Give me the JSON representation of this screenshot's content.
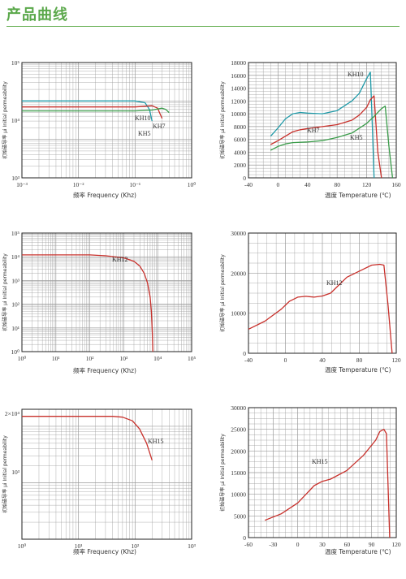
{
  "page": {
    "title": "产品曲线",
    "accent": "#5aa84a"
  },
  "colors": {
    "red": "#c8302b",
    "teal": "#1f9aa8",
    "green": "#3a9c4a",
    "grid": "#9a9a9a",
    "frame": "#222222"
  },
  "chart_data": [
    {
      "type": "line",
      "ylabel": "初始磁导率 μi  Initial permeability",
      "xlabel": "频率 Frequency (Khz)",
      "xscale": "log",
      "yscale": "log",
      "xlim": [
        0.001,
        1
      ],
      "ylim": [
        100,
        100000
      ],
      "xticks": [
        "10⁻³",
        "10⁻²",
        "10⁻¹",
        "10⁰"
      ],
      "yticks": [
        "10³",
        "10⁴",
        "10⁵"
      ],
      "series": [
        {
          "name": "KH10",
          "color": "#1f9aa8",
          "x": [
            0.001,
            0.01,
            0.05,
            0.1,
            0.15,
            0.18,
            0.2
          ],
          "y": [
            10000,
            10000,
            10000,
            10000,
            9000,
            6000,
            3000
          ]
        },
        {
          "name": "KH7",
          "color": "#c8302b",
          "x": [
            0.001,
            0.01,
            0.1,
            0.15,
            0.2,
            0.25,
            0.3
          ],
          "y": [
            7000,
            7000,
            7000,
            7300,
            7500,
            6500,
            3500
          ]
        },
        {
          "name": "KH5",
          "color": "#3a9c4a",
          "x": [
            0.001,
            0.01,
            0.1,
            0.2,
            0.3,
            0.35,
            0.4
          ],
          "y": [
            5500,
            5500,
            5500,
            5800,
            6500,
            6000,
            5000
          ]
        }
      ]
    },
    {
      "type": "line",
      "ylabel": "初始磁导率 μi  Initial permeability",
      "xlabel": "温度 Temperature (℃)",
      "xlim": [
        -40,
        160
      ],
      "ylim": [
        0,
        18000
      ],
      "xticks": [
        "-40",
        "0",
        "40",
        "80",
        "120",
        "160"
      ],
      "yticks": [
        "0",
        "2000",
        "4000",
        "6000",
        "8000",
        "10000",
        "12000",
        "14000",
        "16000",
        "18000"
      ],
      "series": [
        {
          "name": "KH10",
          "color": "#1f9aa8",
          "x": [
            -10,
            0,
            10,
            20,
            30,
            40,
            60,
            80,
            100,
            110,
            120,
            125,
            127,
            130
          ],
          "y": [
            6500,
            7800,
            9200,
            10000,
            10200,
            10100,
            10000,
            10500,
            12000,
            13200,
            15500,
            16500,
            10000,
            0
          ]
        },
        {
          "name": "KH7",
          "color": "#c8302b",
          "x": [
            -10,
            0,
            10,
            20,
            30,
            40,
            60,
            80,
            100,
            110,
            120,
            125,
            130,
            135,
            140
          ],
          "y": [
            5200,
            5800,
            6500,
            7200,
            7500,
            7700,
            8000,
            8300,
            9000,
            9800,
            11000,
            12200,
            12800,
            4000,
            0
          ]
        },
        {
          "name": "KH5",
          "color": "#3a9c4a",
          "x": [
            -10,
            0,
            10,
            20,
            40,
            60,
            80,
            100,
            120,
            130,
            140,
            145,
            150,
            155
          ],
          "y": [
            4300,
            4900,
            5300,
            5500,
            5600,
            5800,
            6300,
            7000,
            8500,
            9600,
            10800,
            11200,
            5000,
            0
          ]
        }
      ]
    },
    {
      "type": "line",
      "ylabel": "初始磁导率 μi  Initial permeability",
      "xlabel": "频率 Frequency (Khz)",
      "xscale": "log",
      "yscale": "log",
      "xlim": [
        1,
        100000
      ],
      "ylim": [
        1,
        100000
      ],
      "xticks": [
        "10⁰",
        "10¹",
        "10²",
        "10³",
        "10⁴",
        "10⁵"
      ],
      "yticks": [
        "10⁰",
        "10¹",
        "10²",
        "10³",
        "10⁴",
        "10⁵"
      ],
      "series": [
        {
          "name": "KH12",
          "color": "#c8302b",
          "x": [
            1,
            10,
            100,
            300,
            1000,
            2000,
            3000,
            4000,
            5000,
            6000,
            6500,
            7000,
            7200
          ],
          "y": [
            12000,
            12000,
            12000,
            11000,
            9000,
            6500,
            4000,
            2000,
            800,
            200,
            50,
            5,
            1
          ]
        }
      ]
    },
    {
      "type": "line",
      "ylabel": "初始磁导率 μi  Initial permeability",
      "xlabel": "温度 Temperature (℃)",
      "xlim": [
        -40,
        140
      ],
      "ylim": [
        0,
        30000
      ],
      "xticks": [
        "-40",
        "0",
        "40",
        "80",
        "120"
      ],
      "yticks": [
        "0",
        "10000",
        "20000",
        "30000"
      ],
      "series": [
        {
          "name": "KH12",
          "color": "#c8302b",
          "x": [
            -40,
            -20,
            0,
            10,
            20,
            30,
            40,
            50,
            60,
            70,
            80,
            100,
            110,
            120,
            125,
            130,
            135
          ],
          "y": [
            6000,
            8000,
            11000,
            13000,
            14000,
            14200,
            14000,
            14300,
            15000,
            17000,
            19000,
            21000,
            22000,
            22200,
            22000,
            12000,
            0
          ]
        }
      ]
    },
    {
      "type": "line",
      "ylabel": "初始磁导率 μi  Initial permeability",
      "xlabel": "频率 Frequency (Khz)",
      "xscale": "log",
      "yscale": "log",
      "xlim": [
        1,
        1000
      ],
      "ylim": [
        100,
        20000
      ],
      "xticks": [
        "10⁰",
        "10¹",
        "10²",
        "10³"
      ],
      "yticks": [
        "2×10⁴",
        "10³"
      ],
      "series": [
        {
          "name": "KH15",
          "color": "#c8302b",
          "x": [
            1,
            10,
            40,
            60,
            90,
            120,
            160,
            200
          ],
          "y": [
            15000,
            15000,
            15000,
            14500,
            12500,
            9000,
            5000,
            2500
          ]
        }
      ]
    },
    {
      "type": "line",
      "ylabel": "初始磁导率 μi  Initial permeability",
      "xlabel": "温度 Temperature (℃)",
      "xlim": [
        -60,
        120
      ],
      "ylim": [
        0,
        30000
      ],
      "xticks": [
        "-60",
        "-30",
        "0",
        "30",
        "60",
        "90",
        "120"
      ],
      "yticks": [
        "0",
        "5000",
        "10000",
        "15000",
        "20000",
        "25000",
        "30000"
      ],
      "series": [
        {
          "name": "KH15",
          "color": "#c8302b",
          "x": [
            -40,
            -20,
            0,
            10,
            20,
            30,
            40,
            60,
            80,
            95,
            100,
            105,
            108,
            110,
            112
          ],
          "y": [
            4000,
            5500,
            8000,
            10000,
            12000,
            13000,
            13500,
            15500,
            19000,
            22500,
            24500,
            25000,
            24000,
            12000,
            0
          ]
        }
      ]
    }
  ]
}
